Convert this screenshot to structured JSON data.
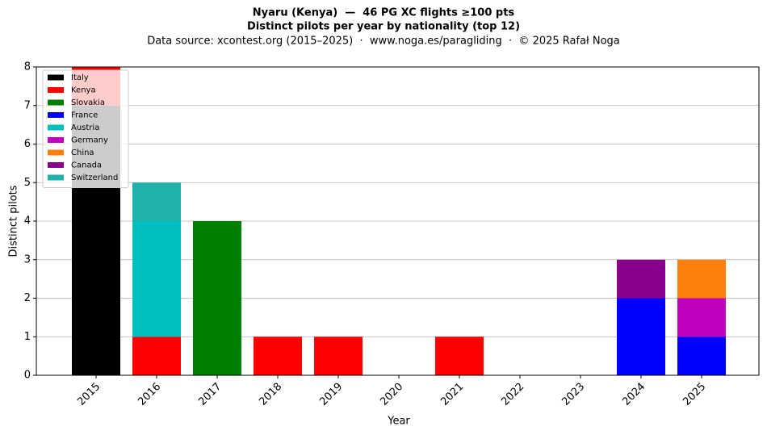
{
  "chart_data": {
    "type": "bar",
    "stacked": true,
    "title": "Nyaru (Kenya)  —  46 PG XC flights ≥100 pts",
    "subtitle": "Distinct pilots per year by nationality (top 12)",
    "source": "Data source: xcontest.org (2015–2025)  ·  www.noga.es/paragliding  ·  © 2025 Rafał Noga",
    "x_label": "Year",
    "y_label": "Distinct pilots",
    "categories": [
      "2015",
      "2016",
      "2017",
      "2018",
      "2019",
      "2020",
      "2021",
      "2022",
      "2023",
      "2024",
      "2025"
    ],
    "series": [
      {
        "name": "Italy",
        "color": "#000000",
        "values": [
          7,
          0,
          0,
          0,
          0,
          0,
          0,
          0,
          0,
          0,
          0
        ]
      },
      {
        "name": "Kenya",
        "color": "#ff0000",
        "values": [
          1,
          1,
          0,
          1,
          1,
          0,
          1,
          0,
          0,
          0,
          0
        ]
      },
      {
        "name": "Slovakia",
        "color": "#008000",
        "values": [
          0,
          0,
          4,
          0,
          0,
          0,
          0,
          0,
          0,
          0,
          0
        ]
      },
      {
        "name": "France",
        "color": "#0000ff",
        "values": [
          0,
          0,
          0,
          0,
          0,
          0,
          0,
          0,
          0,
          2,
          1
        ]
      },
      {
        "name": "Austria",
        "color": "#00bfbf",
        "values": [
          0,
          3,
          0,
          0,
          0,
          0,
          0,
          0,
          0,
          0,
          0
        ]
      },
      {
        "name": "Germany",
        "color": "#bf00bf",
        "values": [
          0,
          0,
          0,
          0,
          0,
          0,
          0,
          0,
          0,
          0,
          1
        ]
      },
      {
        "name": "China",
        "color": "#ff7f0e",
        "values": [
          0,
          0,
          0,
          0,
          0,
          0,
          0,
          0,
          0,
          0,
          1
        ]
      },
      {
        "name": "Canada",
        "color": "#8b008b",
        "values": [
          0,
          0,
          0,
          0,
          0,
          0,
          0,
          0,
          0,
          1,
          0
        ]
      },
      {
        "name": "Switzerland",
        "color": "#20b2aa",
        "values": [
          0,
          1,
          0,
          0,
          0,
          0,
          0,
          0,
          0,
          0,
          0
        ]
      }
    ],
    "ylim": [
      0,
      8
    ],
    "yticks": [
      0,
      1,
      2,
      3,
      4,
      5,
      6,
      7,
      8
    ],
    "grid": true,
    "legend": "upper-left"
  }
}
